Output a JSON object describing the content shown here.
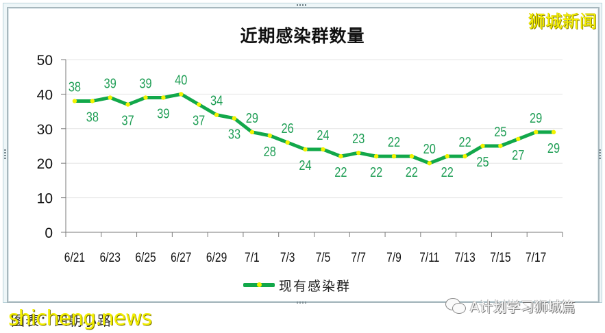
{
  "chart_data": {
    "type": "line",
    "title": "近期感染群数量",
    "xlabel": "",
    "ylabel": "",
    "ylim": [
      0,
      50
    ],
    "yticks": [
      0,
      10,
      20,
      30,
      40,
      50
    ],
    "grid": true,
    "legend_position": "bottom",
    "categories": [
      "6/21",
      "6/22",
      "6/23",
      "6/24",
      "6/25",
      "6/26",
      "6/27",
      "6/28",
      "6/29",
      "6/30",
      "7/1",
      "7/2",
      "7/3",
      "7/4",
      "7/5",
      "7/6",
      "7/7",
      "7/8",
      "7/9",
      "7/10",
      "7/11",
      "7/12",
      "7/13",
      "7/14",
      "7/15",
      "7/16",
      "7/17",
      "7/18"
    ],
    "tick_labels": [
      "6/21",
      "6/23",
      "6/25",
      "6/27",
      "6/29",
      "7/1",
      "7/3",
      "7/5",
      "7/7",
      "7/9",
      "7/11",
      "7/13",
      "7/15",
      "7/17"
    ],
    "series": [
      {
        "name": "现有感染群",
        "values": [
          38,
          38,
          39,
          37,
          39,
          39,
          40,
          37,
          34,
          33,
          29,
          28,
          26,
          24,
          24,
          22,
          23,
          22,
          22,
          22,
          20,
          22,
          22,
          25,
          25,
          27,
          29,
          29
        ],
        "label_position": [
          "above",
          "below",
          "above",
          "below",
          "above",
          "below",
          "above",
          "below",
          "above",
          "below",
          "above",
          "below",
          "above",
          "below",
          "above",
          "below",
          "above",
          "below",
          "above",
          "below",
          "above",
          "below",
          "above",
          "below",
          "above",
          "below",
          "above",
          "below"
        ]
      }
    ]
  },
  "colors": {
    "line": "#12a84a",
    "marker": "#f2f200",
    "data_label": "#1f9e55",
    "grid": "#e4e4e4",
    "axis": "#7a7a7a",
    "brand": "#f5ef00"
  },
  "header": {
    "title": "近期感染群数量",
    "brand": "狮城新闻"
  },
  "legend": {
    "label": "现有感染群"
  },
  "footer": {
    "credit": "图表：四朝小路",
    "site_watermark": "shicheng.news",
    "wechat_watermark": "A计划学习狮城篇"
  }
}
